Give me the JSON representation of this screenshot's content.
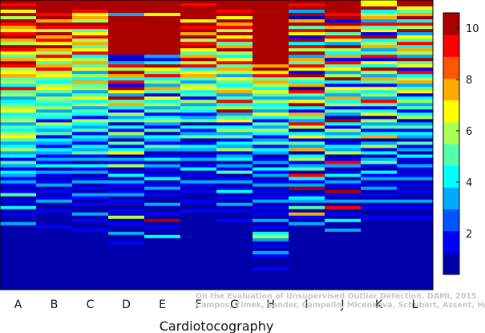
{
  "chart_data": {
    "type": "heatmap",
    "xlabel": "Cardiotocography",
    "ylabel": "",
    "categories": [
      "A",
      "B",
      "C",
      "D",
      "E",
      "F",
      "G",
      "H",
      "I",
      "J",
      "K",
      "L"
    ],
    "colorbar": {
      "range": [
        0.4,
        10.6
      ],
      "ticks": [
        2,
        4,
        6,
        8,
        10
      ],
      "tick_labels": [
        "2",
        "4",
        "6",
        "8",
        "10"
      ],
      "colormap": "jet"
    },
    "row_count": 90,
    "columns": [
      {
        "name": "A",
        "values": [
          10,
          9,
          10,
          7,
          10,
          6,
          10,
          9,
          8,
          7,
          9,
          10,
          8,
          6,
          10,
          9,
          7,
          5,
          8,
          10,
          9,
          6,
          7,
          8,
          5,
          6,
          4,
          9,
          5,
          6,
          3,
          4,
          5,
          6,
          7,
          4,
          5,
          6,
          3,
          5,
          4,
          6,
          7,
          5,
          3,
          4,
          6,
          3,
          4,
          2,
          5,
          3,
          2,
          4,
          3,
          2,
          3,
          2,
          1,
          2,
          5,
          1,
          2,
          1,
          4,
          1,
          2,
          1,
          1,
          3,
          1,
          1,
          1,
          1,
          1,
          1,
          1,
          1,
          1,
          1,
          1,
          1,
          1,
          1,
          1,
          1,
          1,
          1,
          1,
          1
        ]
      },
      {
        "name": "B",
        "values": [
          10,
          10,
          10,
          10,
          9,
          10,
          8,
          10,
          9,
          6,
          10,
          8,
          9,
          7,
          10,
          8,
          6,
          9,
          7,
          5,
          8,
          9,
          6,
          7,
          5,
          4,
          6,
          7,
          5,
          3,
          6,
          5,
          4,
          6,
          3,
          5,
          4,
          2,
          6,
          4,
          3,
          5,
          2,
          4,
          3,
          2,
          4,
          3,
          2,
          3,
          2,
          4,
          1,
          3,
          2,
          1,
          2,
          3,
          1,
          2,
          1,
          2,
          3,
          1,
          1,
          2,
          1,
          1,
          1,
          1,
          2,
          1,
          1,
          1,
          1,
          1,
          1,
          1,
          1,
          1,
          1,
          1,
          1,
          1,
          1,
          1,
          1,
          1,
          1,
          1
        ]
      },
      {
        "name": "C",
        "values": [
          10,
          10,
          10,
          9,
          7,
          8,
          6,
          10,
          9,
          5,
          7,
          9,
          6,
          8,
          5,
          7,
          9,
          4,
          6,
          8,
          5,
          7,
          3,
          6,
          4,
          8,
          5,
          6,
          3,
          5,
          7,
          4,
          6,
          3,
          5,
          4,
          2,
          6,
          4,
          3,
          5,
          2,
          4,
          3,
          2,
          4,
          3,
          5,
          2,
          3,
          1,
          4,
          2,
          3,
          1,
          2,
          3,
          1,
          2,
          1,
          3,
          2,
          1,
          2,
          1,
          1,
          3,
          1,
          2,
          1,
          1,
          2,
          1,
          1,
          1,
          1,
          1,
          1,
          1,
          1,
          1,
          1,
          1,
          1,
          1,
          1,
          1,
          1,
          1,
          1
        ]
      },
      {
        "name": "D",
        "values": [
          10,
          10,
          10,
          10,
          3,
          10,
          10,
          10,
          10,
          10,
          10,
          10,
          10,
          10,
          10,
          10,
          10,
          2,
          1,
          3,
          9,
          6,
          10,
          8,
          4,
          9,
          2,
          10,
          7,
          3,
          10,
          5,
          8,
          4,
          2,
          6,
          3,
          5,
          1,
          4,
          2,
          6,
          3,
          1,
          5,
          2,
          4,
          7,
          1,
          3,
          2,
          6,
          1,
          2,
          4,
          1,
          3,
          2,
          1,
          2,
          3,
          1,
          2,
          1,
          1,
          2,
          1,
          6,
          1,
          2,
          1,
          1,
          3,
          1,
          1,
          2,
          1,
          1,
          1,
          1,
          1,
          1,
          1,
          1,
          1,
          1,
          1,
          1,
          1,
          1
        ]
      },
      {
        "name": "E",
        "values": [
          10,
          10,
          10,
          10,
          7,
          10,
          10,
          10,
          10,
          10,
          10,
          10,
          10,
          10,
          10,
          10,
          10,
          3,
          2,
          4,
          10,
          7,
          5,
          9,
          4,
          6,
          3,
          8,
          5,
          2,
          7,
          4,
          6,
          3,
          5,
          2,
          4,
          6,
          3,
          2,
          5,
          1,
          4,
          3,
          2,
          5,
          3,
          1,
          2,
          4,
          1,
          3,
          2,
          1,
          2,
          4,
          1,
          2,
          3,
          1,
          2,
          1,
          1,
          3,
          1,
          1,
          2,
          1,
          10,
          1,
          2,
          1,
          1,
          4,
          1,
          1,
          1,
          1,
          1,
          1,
          1,
          1,
          1,
          1,
          1,
          1,
          1,
          1,
          1,
          1
        ]
      },
      {
        "name": "F",
        "values": [
          10,
          9,
          10,
          10,
          10,
          10,
          7,
          10,
          9,
          10,
          8,
          10,
          6,
          9,
          10,
          7,
          5,
          8,
          10,
          6,
          9,
          4,
          7,
          8,
          5,
          3,
          6,
          7,
          4,
          5,
          2,
          6,
          3,
          5,
          4,
          2,
          3,
          5,
          1,
          4,
          2,
          3,
          5,
          1,
          2,
          4,
          3,
          1,
          2,
          3,
          1,
          2,
          4,
          1,
          2,
          1,
          3,
          2,
          1,
          2,
          1,
          1,
          2,
          1,
          1,
          2,
          1,
          1,
          1,
          1,
          1,
          1,
          1,
          1,
          1,
          1,
          1,
          1,
          1,
          1,
          1,
          1,
          1,
          1,
          1,
          1,
          1,
          1,
          1,
          1
        ]
      },
      {
        "name": "G",
        "values": [
          10,
          10,
          10,
          9,
          10,
          7,
          10,
          8,
          9,
          6,
          10,
          7,
          9,
          5,
          8,
          10,
          6,
          4,
          7,
          9,
          5,
          8,
          6,
          3,
          7,
          5,
          4,
          6,
          8,
          3,
          5,
          9,
          4,
          6,
          10,
          3,
          5,
          7,
          2,
          4,
          6,
          3,
          5,
          2,
          4,
          3,
          6,
          2,
          3,
          4,
          1,
          3,
          2,
          5,
          1,
          2,
          3,
          1,
          2,
          4,
          1,
          2,
          1,
          3,
          1,
          2,
          1,
          1,
          2,
          1,
          1,
          1,
          1,
          1,
          1,
          1,
          1,
          1,
          1,
          1,
          1,
          1,
          1,
          1,
          1,
          1,
          1,
          1,
          1,
          1
        ]
      },
      {
        "name": "H",
        "values": [
          10,
          10,
          10,
          10,
          10,
          10,
          10,
          10,
          10,
          10,
          10,
          10,
          10,
          10,
          10,
          10,
          10,
          10,
          10,
          10,
          8,
          10,
          7,
          9,
          5,
          8,
          6,
          4,
          7,
          5,
          3,
          6,
          4,
          5,
          3,
          7,
          4,
          2,
          5,
          3,
          6,
          4,
          2,
          3,
          5,
          2,
          4,
          3,
          1,
          2,
          3,
          1,
          4,
          2,
          3,
          1,
          2,
          3,
          1,
          2,
          1,
          2,
          3,
          1,
          2,
          1,
          2,
          1,
          3,
          1,
          2,
          1,
          4,
          6,
          3,
          1,
          2,
          1,
          3,
          2,
          1,
          1,
          1,
          2,
          1,
          1,
          1,
          1,
          1,
          1
        ]
      },
      {
        "name": "I",
        "values": [
          10,
          9,
          10,
          3,
          10,
          1,
          8,
          10,
          5,
          9,
          7,
          2,
          10,
          4,
          9,
          6,
          10,
          3,
          8,
          5,
          9,
          7,
          2,
          10,
          6,
          4,
          8,
          1,
          9,
          5,
          3,
          7,
          10,
          4,
          2,
          8,
          5,
          3,
          9,
          6,
          1,
          4,
          7,
          2,
          5,
          3,
          8,
          1,
          4,
          6,
          2,
          3,
          5,
          1,
          9,
          4,
          2,
          3,
          10,
          1,
          2,
          4,
          3,
          1,
          5,
          1,
          8,
          2,
          1,
          3,
          1,
          1,
          1,
          1,
          1,
          1,
          1,
          1,
          1,
          1,
          1,
          1,
          1,
          1,
          1,
          1,
          1,
          1,
          1,
          1
        ]
      },
      {
        "name": "J",
        "values": [
          10,
          10,
          10,
          10,
          9,
          10,
          2,
          10,
          8,
          10,
          5,
          9,
          7,
          3,
          10,
          6,
          4,
          8,
          2,
          9,
          5,
          7,
          3,
          6,
          10,
          4,
          2,
          7,
          5,
          3,
          8,
          4,
          6,
          2,
          5,
          3,
          1,
          10,
          4,
          2,
          6,
          3,
          5,
          1,
          2,
          4,
          3,
          6,
          1,
          2,
          9,
          3,
          1,
          2,
          4,
          1,
          3,
          2,
          1,
          10,
          2,
          1,
          3,
          1,
          9,
          1,
          2,
          1,
          4,
          1,
          1,
          3,
          1,
          1,
          1,
          1,
          1,
          1,
          1,
          1,
          1,
          1,
          1,
          1,
          1,
          1,
          1,
          1,
          1,
          1
        ]
      },
      {
        "name": "K",
        "values": [
          7,
          7,
          10,
          4,
          6,
          8,
          3,
          9,
          5,
          7,
          2,
          10,
          4,
          6,
          8,
          3,
          5,
          9,
          2,
          7,
          4,
          10,
          6,
          3,
          8,
          5,
          2,
          7,
          4,
          6,
          3,
          9,
          5,
          2,
          4,
          7,
          1,
          6,
          3,
          5,
          2,
          4,
          8,
          1,
          3,
          6,
          2,
          4,
          1,
          3,
          5,
          2,
          1,
          4,
          2,
          3,
          1,
          2,
          3,
          1,
          2,
          1,
          3,
          1,
          2,
          1,
          1,
          2,
          1,
          1,
          1,
          1,
          1,
          1,
          1,
          1,
          1,
          1,
          1,
          1,
          1,
          1,
          1,
          1,
          1,
          1,
          1,
          1,
          1,
          1
        ]
      },
      {
        "name": "L",
        "values": [
          10,
          10,
          7,
          5,
          8,
          10,
          4,
          9,
          6,
          10,
          3,
          7,
          5,
          9,
          4,
          8,
          6,
          3,
          10,
          5,
          7,
          2,
          9,
          4,
          6,
          8,
          3,
          5,
          7,
          2,
          4,
          6,
          3,
          5,
          2,
          4,
          6,
          1,
          3,
          5,
          2,
          4,
          3,
          1,
          5,
          2,
          3,
          1,
          4,
          2,
          1,
          3,
          2,
          1,
          2,
          3,
          1,
          2,
          1,
          2,
          1,
          1,
          3,
          1,
          2,
          1,
          1,
          2,
          1,
          1,
          1,
          1,
          1,
          1,
          1,
          1,
          1,
          1,
          1,
          1,
          1,
          1,
          1,
          1,
          1,
          1,
          1,
          1,
          1,
          1
        ]
      }
    ],
    "grid": false,
    "legend": "colorbar-right"
  },
  "credit": {
    "line1": "On the Evaluation of Unsupervised Outlier Detection. DAMI, 2015.",
    "line2": "Campos, Zimek, Sander, Campello, Micenková, Schubert, Assent, Houle"
  }
}
